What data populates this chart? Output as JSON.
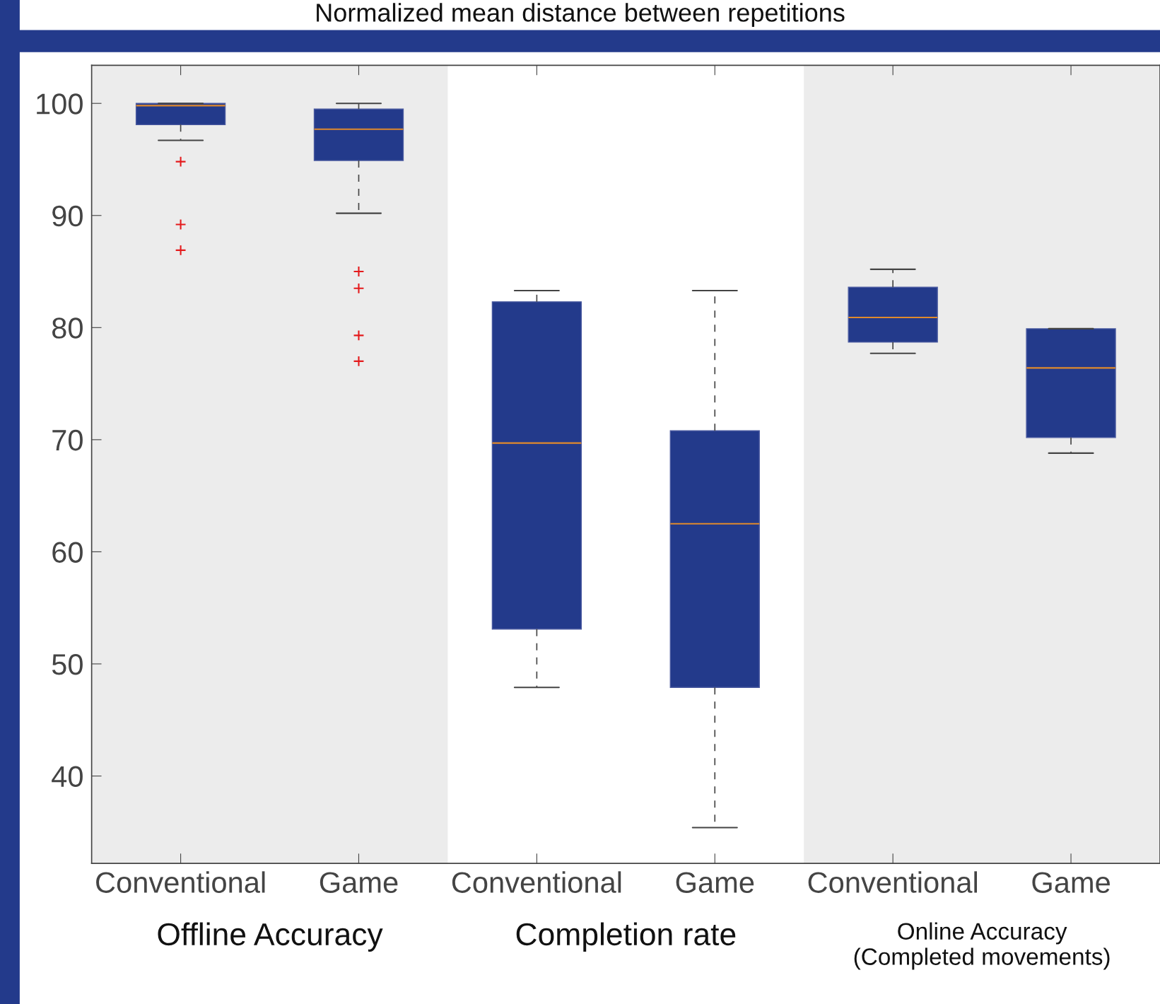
{
  "chart_data": {
    "type": "box",
    "title": "Normalized mean distance between repetitions",
    "categories": [
      "Conventional",
      "Game",
      "Conventional",
      "Game",
      "Conventional",
      "Game"
    ],
    "boxes": [
      {
        "low": 96.7,
        "q1": 98.1,
        "median": 99.8,
        "q3": 100,
        "high": 100,
        "outliers": [
          94.8,
          89.2,
          86.9
        ]
      },
      {
        "low": 90.2,
        "q1": 94.9,
        "median": 97.7,
        "q3": 99.5,
        "high": 100,
        "outliers": [
          85.0,
          83.5,
          79.3,
          77.0
        ]
      },
      {
        "low": 47.9,
        "q1": 53.1,
        "median": 69.7,
        "q3": 82.3,
        "high": 83.3
      },
      {
        "low": 35.4,
        "q1": 47.9,
        "median": 62.5,
        "q3": 70.8,
        "high": 83.3
      },
      {
        "low": 77.7,
        "q1": 78.7,
        "median": 80.9,
        "q3": 83.6,
        "high": 85.2
      },
      {
        "low": 68.8,
        "q1": 70.2,
        "median": 76.4,
        "q3": 79.9,
        "high": 79.9
      }
    ],
    "color": "#233a8b",
    "ylim": [
      32.2,
      103.4
    ],
    "yticks": [
      40,
      50,
      60,
      70,
      80,
      90,
      100
    ],
    "grid": false,
    "marker": "cross",
    "line_style": "dashed",
    "annotations": [
      "Offline Accuracy",
      "Completion rate",
      "Online Accuracy\n(Completed movements)"
    ]
  }
}
